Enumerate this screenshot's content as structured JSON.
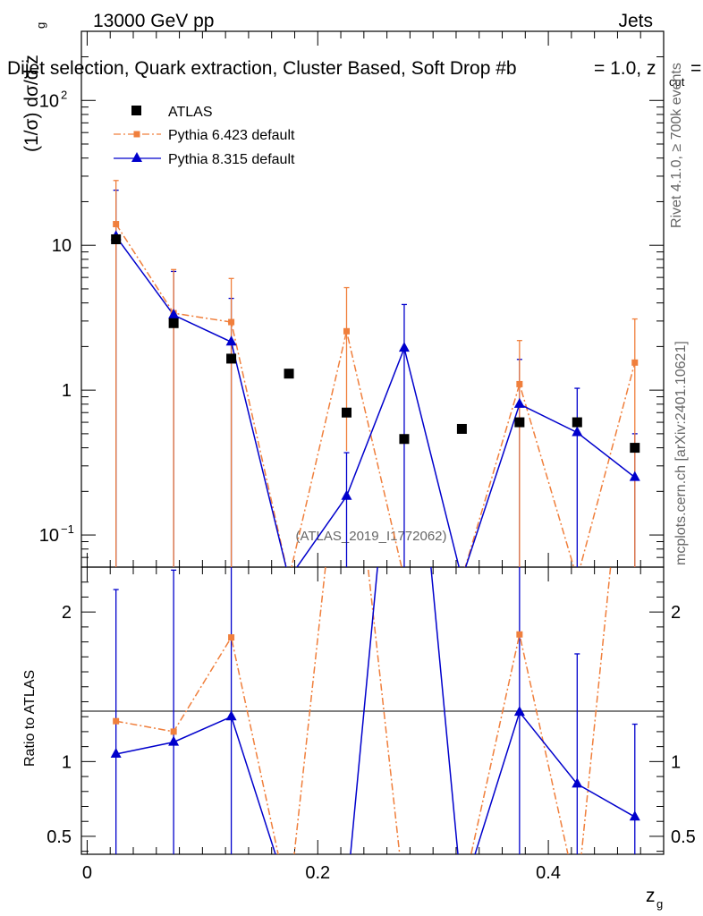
{
  "header": {
    "energy_label": "13000 GeV pp",
    "category_label": "Jets",
    "subtitle": "Dijet selection, Quark extraction, Cluster Based, Soft Drop #b",
    "subtitle_beta": "= 1.0, z",
    "subtitle_cut": "cut",
    "subtitle_tail": "=",
    "analysis_id": "(ATLAS_2019_I1772062)",
    "side_rivet": "Rivet 4.1.0, ≥ 700k events",
    "side_mcplots": "mcplots.cern.ch [arXiv:2401.10621]"
  },
  "colors": {
    "data": "#000000",
    "pythia6": "#f07f3c",
    "pythia8": "#0000cc"
  },
  "chart_data": {
    "type": "scatter",
    "title": "",
    "xlabel": "z",
    "xlabel_sub": "g",
    "ylabel_main": "(1/σ) dσ/d z",
    "ylabel_sub": "g",
    "ylabel_ratio": "Ratio to ATLAS",
    "xlim": [
      -0.005,
      0.5
    ],
    "ylim_main": [
      0.06,
      300
    ],
    "ylim_ratio": [
      0.38,
      2.3
    ],
    "x_ticks": [
      {
        "value": 0,
        "label": "0"
      },
      {
        "value": 0.2,
        "label": "0.2"
      },
      {
        "value": 0.4,
        "label": "0.4"
      }
    ],
    "y_ticks_main": [
      {
        "value": 0.1,
        "label": "10",
        "sup": "−1"
      },
      {
        "value": 1,
        "label": "1",
        "sup": ""
      },
      {
        "value": 10,
        "label": "10",
        "sup": ""
      },
      {
        "value": 100,
        "label": "10",
        "sup": "2"
      }
    ],
    "y_ticks_ratio": [
      {
        "value": 0.5,
        "label": "0.5"
      },
      {
        "value": 1,
        "label": "1"
      },
      {
        "value": 2,
        "label": "2"
      }
    ],
    "x": [
      0.025,
      0.075,
      0.125,
      0.175,
      0.225,
      0.275,
      0.325,
      0.375,
      0.425,
      0.475
    ],
    "series": [
      {
        "name": "ATLAS",
        "style": "data",
        "values": [
          11.0,
          2.9,
          1.65,
          1.3,
          0.7,
          0.46,
          0.54,
          0.6,
          0.6,
          0.4
        ]
      },
      {
        "name": "Pythia 6.423 default",
        "style": "pythia6",
        "values": [
          14.0,
          3.4,
          2.95,
          0.05,
          2.55,
          0.05,
          0.05,
          1.1,
          0.05,
          1.55
        ],
        "err_up": [
          28.0,
          6.8,
          5.9,
          null,
          5.1,
          null,
          null,
          2.2,
          null,
          3.1
        ],
        "err_down": [
          0.05,
          0.05,
          0.05,
          null,
          0.38,
          null,
          null,
          0.05,
          null,
          0.05
        ],
        "ratio": [
          1.27,
          1.2,
          1.83,
          0.05,
          3.6,
          0.1,
          0.1,
          1.85,
          0.1,
          3.9
        ]
      },
      {
        "name": "Pythia 8.315 default",
        "style": "pythia8",
        "values": [
          11.5,
          3.3,
          2.15,
          0.05,
          0.185,
          1.95,
          0.05,
          0.8,
          0.51,
          0.25
        ],
        "err_up": [
          24.0,
          6.6,
          4.3,
          null,
          0.37,
          3.9,
          null,
          1.63,
          1.03,
          0.5
        ],
        "err_down": [
          0.05,
          0.05,
          0.05,
          null,
          0.05,
          0.05,
          null,
          0.05,
          0.05,
          0.05
        ],
        "ratio": [
          1.05,
          1.13,
          1.3,
          0.1,
          0.1,
          4.2,
          0.1,
          1.33,
          0.85,
          0.63
        ],
        "ratio_err_up": [
          2.15,
          2.28,
          2.6,
          null,
          null,
          null,
          null,
          2.7,
          1.72,
          1.25
        ],
        "ratio_err_down": [
          0.1,
          0.1,
          0.1,
          null,
          null,
          null,
          null,
          0.1,
          0.1,
          0.1
        ]
      }
    ],
    "legend_position": "top-left"
  }
}
